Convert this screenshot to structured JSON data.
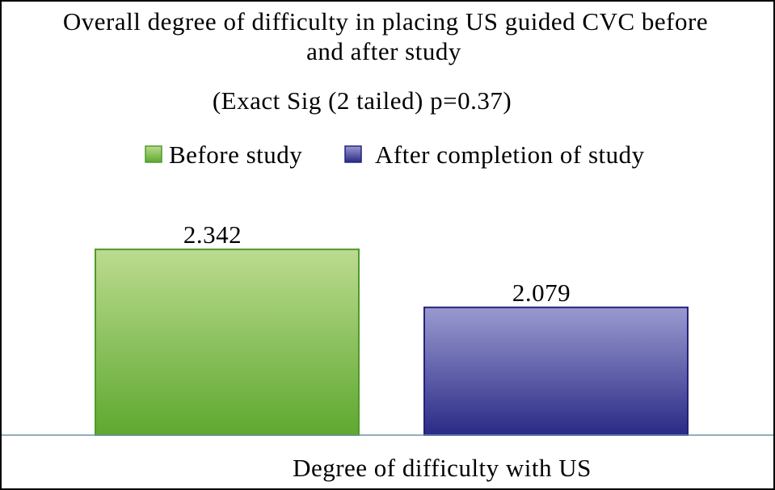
{
  "chart_data": {
    "type": "bar",
    "title_line1": "Overall degree of difficulty in placing US guided CVC before",
    "title_line2": "and after study",
    "subtitle": "(Exact Sig (2 tailed) p=0.37)",
    "categories": [
      "Degree of difficulty with US"
    ],
    "series": [
      {
        "name": "Before study",
        "values": [
          2.342
        ],
        "data_label": "2.342"
      },
      {
        "name": "After completion of study",
        "values": [
          2.079
        ],
        "data_label": "2.079"
      }
    ],
    "colors": {
      "before_top": "#bcdb8f",
      "before_bottom": "#5ea830",
      "before_stroke": "#4f9a2a",
      "after_top": "#9a9ad0",
      "after_bottom": "#2a2a86",
      "after_stroke": "#23237a",
      "baseline": "#6f93a6"
    },
    "legend_position": "top",
    "grid": false,
    "ylim": [
      1.5,
      2.4
    ]
  }
}
